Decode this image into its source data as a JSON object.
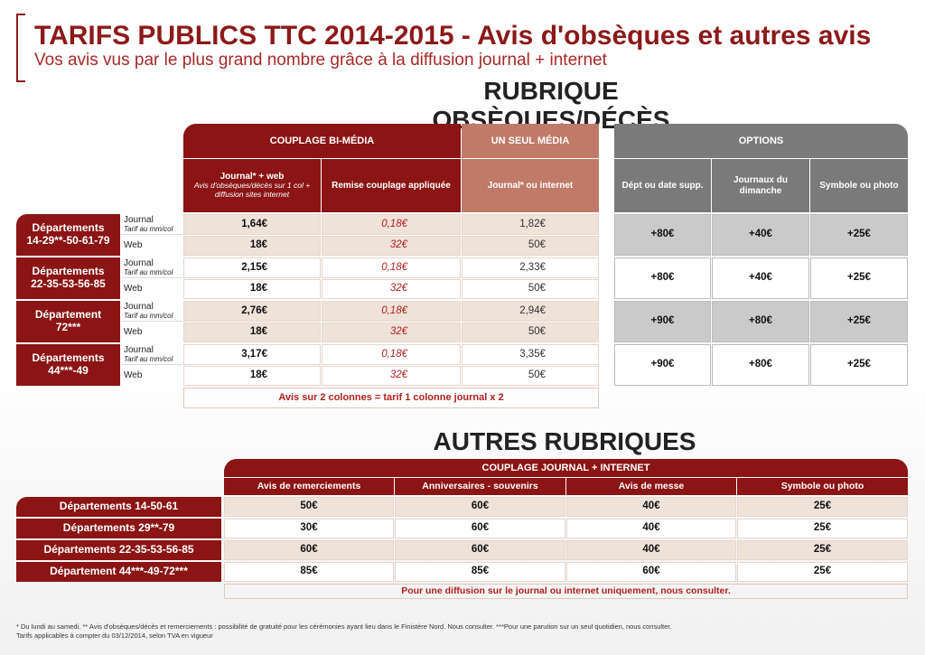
{
  "header": {
    "title": "TARIFS PUBLICS TTC 2014-2015 - Avis d'obsèques et autres avis",
    "subtitle": "Vos avis vus par le plus grand nombre grâce à la diffusion journal + internet"
  },
  "section1": {
    "heading": "RUBRIQUE OBSÈQUES/DÉCÈS",
    "groups": [
      "COUPLAGE BI-MÉDIA",
      "UN SEUL MÉDIA",
      "OPTIONS"
    ],
    "columns": [
      {
        "title": "Journal* + web",
        "subtitle": "Avis d'obsèques/décès sur 1 col + diffusion sites internet"
      },
      {
        "title": "Remise couplage appliquée"
      },
      {
        "title": "Journal* ou internet"
      }
    ],
    "option_columns": [
      "Dépt ou date supp.",
      "Journaux du dimanche",
      "Symbole ou photo"
    ],
    "rows": [
      {
        "label": [
          "Départements",
          "14-29**-50-61-79"
        ],
        "journal": "Journal",
        "journal_note": "Tarif au mm/col",
        "web": "Web",
        "journal_values": [
          "1,64€",
          "0,18€",
          "1,82€"
        ],
        "web_values": [
          "18€",
          "32€",
          "50€"
        ],
        "options": [
          "+80€",
          "+40€",
          "+25€"
        ]
      },
      {
        "label": [
          "Départements",
          "22-35-53-56-85"
        ],
        "journal": "Journal",
        "journal_note": "Tarif au mm/col",
        "web": "Web",
        "journal_values": [
          "2,15€",
          "0,18€",
          "2,33€"
        ],
        "web_values": [
          "18€",
          "32€",
          "50€"
        ],
        "options": [
          "+80€",
          "+40€",
          "+25€"
        ]
      },
      {
        "label": [
          "Département",
          "72***"
        ],
        "journal": "Journal",
        "journal_note": "Tarif au mm/col",
        "web": "Web",
        "journal_values": [
          "2,76€",
          "0,18€",
          "2,94€"
        ],
        "web_values": [
          "18€",
          "32€",
          "50€"
        ],
        "options": [
          "+90€",
          "+80€",
          "+25€"
        ]
      },
      {
        "label": [
          "Départements",
          "44***-49"
        ],
        "journal": "Journal",
        "journal_note": "Tarif au mm/col",
        "web": "Web",
        "journal_values": [
          "3,17€",
          "0,18€",
          "3,35€"
        ],
        "web_values": [
          "18€",
          "32€",
          "50€"
        ],
        "options": [
          "+90€",
          "+80€",
          "+25€"
        ]
      }
    ],
    "note": "Avis sur 2 colonnes = tarif 1 colonne journal x 2"
  },
  "section2": {
    "heading": "AUTRES RUBRIQUES",
    "group": "COUPLAGE JOURNAL + INTERNET",
    "columns": [
      "Avis de remerciements",
      "Anniversaires - souvenirs",
      "Avis de messe",
      "Symbole ou photo"
    ],
    "rows": [
      {
        "label": "Départements 14-50-61",
        "values": [
          "50€",
          "60€",
          "40€",
          "25€"
        ]
      },
      {
        "label": "Départements 29**-79",
        "values": [
          "30€",
          "60€",
          "40€",
          "25€"
        ]
      },
      {
        "label": "Départements 22-35-53-56-85",
        "values": [
          "60€",
          "60€",
          "40€",
          "25€"
        ]
      },
      {
        "label": "Département 44***-49-72***",
        "values": [
          "85€",
          "85€",
          "60€",
          "25€"
        ]
      }
    ],
    "note": "Pour une diffusion sur le journal ou internet uniquement, nous consulter."
  },
  "footer": [
    "* Du lundi au samedi. ** Avis d'obsèques/décès et remerciements : possibilité de gratuité pour les cérémonies ayant lieu dans le Finistère Nord. Nous consulter. ***Pour une parution sur un seul quotidien, nous consulter.",
    "Tarifs applicables à compter du 03/12/2014, selon TVA en vigueur"
  ]
}
